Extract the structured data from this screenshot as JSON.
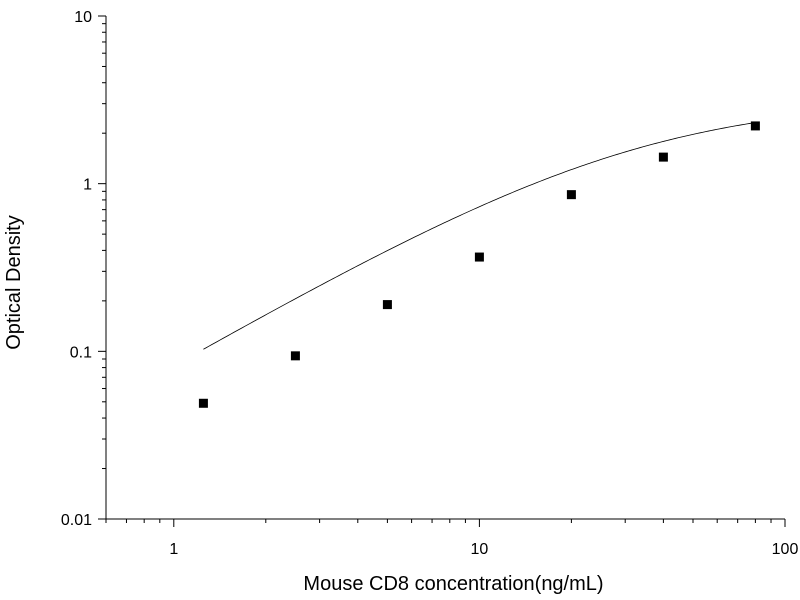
{
  "chart_data": {
    "type": "scatter",
    "title": "",
    "xlabel": "Mouse CD8 concentration(ng/mL)",
    "ylabel": "Optical Density",
    "xscale": "log",
    "yscale": "log",
    "xlim": [
      0.6,
      100
    ],
    "ylim": [
      0.01,
      10
    ],
    "grid": false,
    "x_ticks": [
      {
        "value": 1,
        "label": "1"
      },
      {
        "value": 10,
        "label": "10"
      },
      {
        "value": 100,
        "label": "100"
      }
    ],
    "y_ticks": [
      {
        "value": 0.01,
        "label": "0.01"
      },
      {
        "value": 0.1,
        "label": "0.1"
      },
      {
        "value": 1,
        "label": "1"
      },
      {
        "value": 10,
        "label": "10"
      }
    ],
    "series": [
      {
        "x": [
          1.25,
          2.5,
          5,
          10,
          20,
          40,
          80
        ],
        "y": [
          0.049,
          0.094,
          0.19,
          0.365,
          0.86,
          1.44,
          2.21
        ],
        "marker": "square",
        "color": "#000000"
      }
    ],
    "fit_curve": {
      "type": "4PL",
      "x_range": [
        1.25,
        80
      ],
      "A": 0.0,
      "D": 3.2,
      "C": 32,
      "B": 1.05
    }
  }
}
